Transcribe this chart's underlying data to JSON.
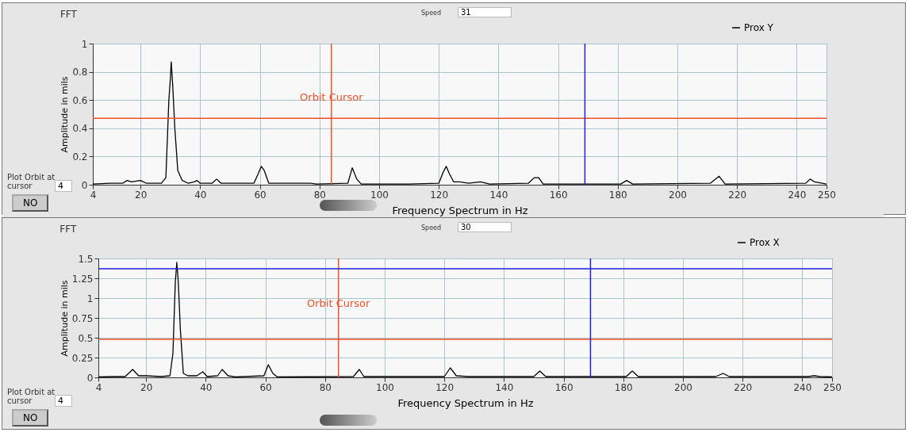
{
  "chart_data": [
    {
      "type": "line",
      "title": "FFT",
      "xlabel": "Frequency Spectrum in Hz",
      "ylabel": "Amplitude in mils",
      "xlim": [
        4,
        250
      ],
      "xticks": [
        4,
        20,
        40,
        60,
        80,
        100,
        120,
        140,
        160,
        180,
        200,
        220,
        240,
        250
      ],
      "ylim": [
        0,
        1
      ],
      "yticks": [
        0,
        0.2,
        0.4,
        0.6,
        0.8,
        1
      ],
      "grid": true,
      "legend": "top right",
      "annotations": [
        "Speed",
        "31",
        "Plot Orbit at cursor",
        "4",
        "NO"
      ],
      "ref_lines": [
        {
          "axis": "x",
          "value": 84,
          "label": "Orbit Cursor",
          "color": "#f0502a"
        },
        {
          "axis": "y",
          "value": 0.47,
          "color": "#f0502a"
        },
        {
          "axis": "x",
          "value": 169,
          "color": "#2020e0"
        }
      ],
      "series": [
        {
          "name": "Prox Y",
          "color": "#000000",
          "x": [
            4,
            10,
            14,
            15.5,
            17,
            20,
            22,
            27,
            28.5,
            29.5,
            30,
            30.3,
            30.8,
            31.5,
            32.5,
            34,
            36,
            38,
            39,
            40,
            44,
            45.5,
            47,
            58,
            59.5,
            60.5,
            61.5,
            63,
            77,
            79,
            89.5,
            91,
            92.5,
            94,
            110,
            120,
            121.5,
            122.5,
            123.5,
            125,
            127,
            130,
            134,
            137,
            150,
            152,
            153.5,
            155,
            181,
            183,
            185,
            211,
            214,
            216,
            243,
            244.5,
            246,
            250
          ],
          "values": [
            0.005,
            0.01,
            0.01,
            0.03,
            0.02,
            0.03,
            0.01,
            0.01,
            0.05,
            0.6,
            0.75,
            0.87,
            0.7,
            0.4,
            0.1,
            0.03,
            0.01,
            0.02,
            0.03,
            0.01,
            0.01,
            0.04,
            0.01,
            0.01,
            0.08,
            0.13,
            0.1,
            0.01,
            0.01,
            0.005,
            0.01,
            0.12,
            0.04,
            0.005,
            0.005,
            0.01,
            0.09,
            0.13,
            0.08,
            0.02,
            0.02,
            0.01,
            0.02,
            0.005,
            0.01,
            0.05,
            0.05,
            0.005,
            0.005,
            0.03,
            0.005,
            0.01,
            0.06,
            0.005,
            0.01,
            0.04,
            0.02,
            0.005
          ]
        }
      ]
    },
    {
      "type": "line",
      "title": "FFT",
      "xlabel": "Frequency Spectrum in Hz",
      "ylabel": "Amplitude in mils",
      "xlim": [
        4,
        250
      ],
      "xticks": [
        4,
        20,
        40,
        60,
        80,
        100,
        120,
        140,
        160,
        180,
        200,
        220,
        240,
        250
      ],
      "ylim": [
        0,
        1.5
      ],
      "yticks": [
        0,
        0.25,
        0.5,
        0.75,
        1,
        1.25,
        1.5
      ],
      "grid": true,
      "legend": "top right",
      "annotations": [
        "Speed",
        "30",
        "Plot Orbit at cursor",
        "4",
        "NO"
      ],
      "ref_lines": [
        {
          "axis": "x",
          "value": 84.5,
          "label": "Orbit Cursor",
          "color": "#f0502a"
        },
        {
          "axis": "y",
          "value": 0.48,
          "color": "#f0502a"
        },
        {
          "axis": "x",
          "value": 169,
          "color": "#2020e0"
        },
        {
          "axis": "y",
          "value": 1.37,
          "color": "#2020e0"
        }
      ],
      "series": [
        {
          "name": "Prox X",
          "color": "#000000",
          "x": [
            4,
            10,
            13,
            15.5,
            17.5,
            20,
            25,
            28,
            29,
            29.8,
            30.3,
            30.8,
            31.5,
            32.5,
            34,
            37,
            39,
            40.5,
            44,
            45.5,
            47.5,
            50,
            59.5,
            61,
            62.5,
            64,
            89.5,
            91.5,
            93,
            108,
            120,
            122,
            124,
            128,
            134,
            150,
            152,
            154,
            181,
            183,
            185,
            211,
            213.5,
            215.5,
            242,
            244,
            246,
            250
          ],
          "values": [
            0.005,
            0.01,
            0.01,
            0.1,
            0.02,
            0.02,
            0.01,
            0.02,
            0.3,
            1.2,
            1.45,
            1.2,
            0.6,
            0.05,
            0.02,
            0.02,
            0.07,
            0.01,
            0.02,
            0.1,
            0.02,
            0.005,
            0.02,
            0.16,
            0.05,
            0.005,
            0.01,
            0.1,
            0.01,
            0.01,
            0.01,
            0.12,
            0.02,
            0.01,
            0.01,
            0.01,
            0.08,
            0.01,
            0.01,
            0.08,
            0.01,
            0.01,
            0.05,
            0.01,
            0.01,
            0.02,
            0.01,
            0.005
          ]
        }
      ]
    }
  ]
}
